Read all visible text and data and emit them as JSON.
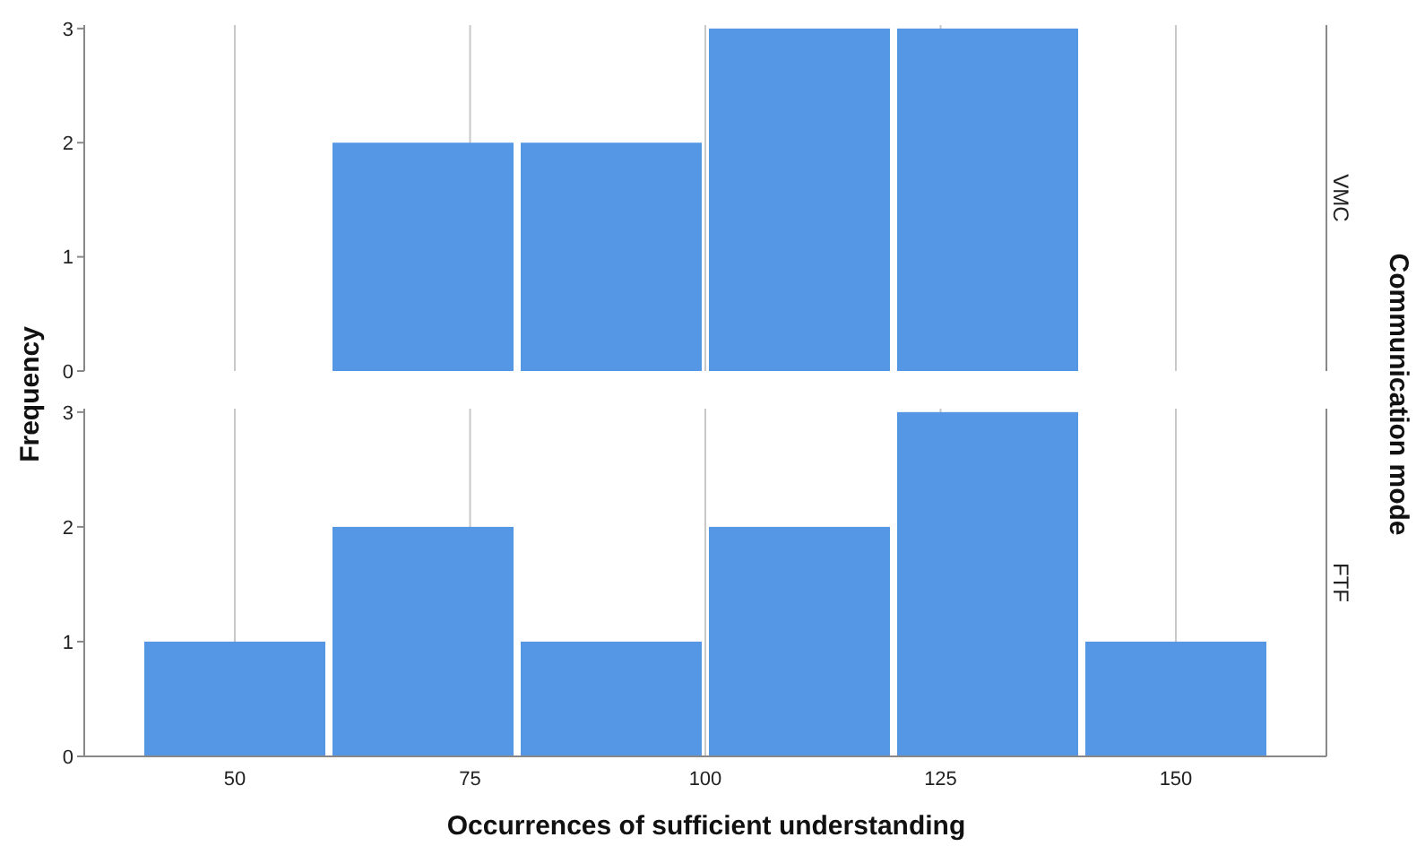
{
  "chart_data": [
    {
      "type": "histogram",
      "title": "VMC",
      "ylabel": "Frequency",
      "y2label": "Communication mode",
      "bins": [
        40,
        60,
        80,
        100,
        120,
        140,
        160
      ],
      "values": [
        0,
        2,
        2,
        3,
        3,
        0
      ],
      "color": "#5597e4",
      "xlim": [
        34,
        166
      ],
      "xticks": [
        50,
        75,
        100,
        125,
        150
      ],
      "ylim": [
        0,
        3.03
      ],
      "yticks": [
        0,
        1,
        2,
        3
      ],
      "grid": "x",
      "tick_labels": "y"
    },
    {
      "type": "histogram",
      "title": "FTF",
      "xlabel": "Occurrences of sufficient understanding",
      "bins": [
        40,
        60,
        80,
        100,
        120,
        140,
        160
      ],
      "values": [
        1,
        2,
        1,
        2,
        3,
        1
      ],
      "color": "#5597e4",
      "xlim": [
        34,
        166
      ],
      "xticks": [
        50,
        75,
        100,
        125,
        150
      ],
      "ylim": [
        0,
        3.03
      ],
      "yticks": [
        0,
        1,
        2,
        3
      ],
      "grid": "x"
    }
  ]
}
